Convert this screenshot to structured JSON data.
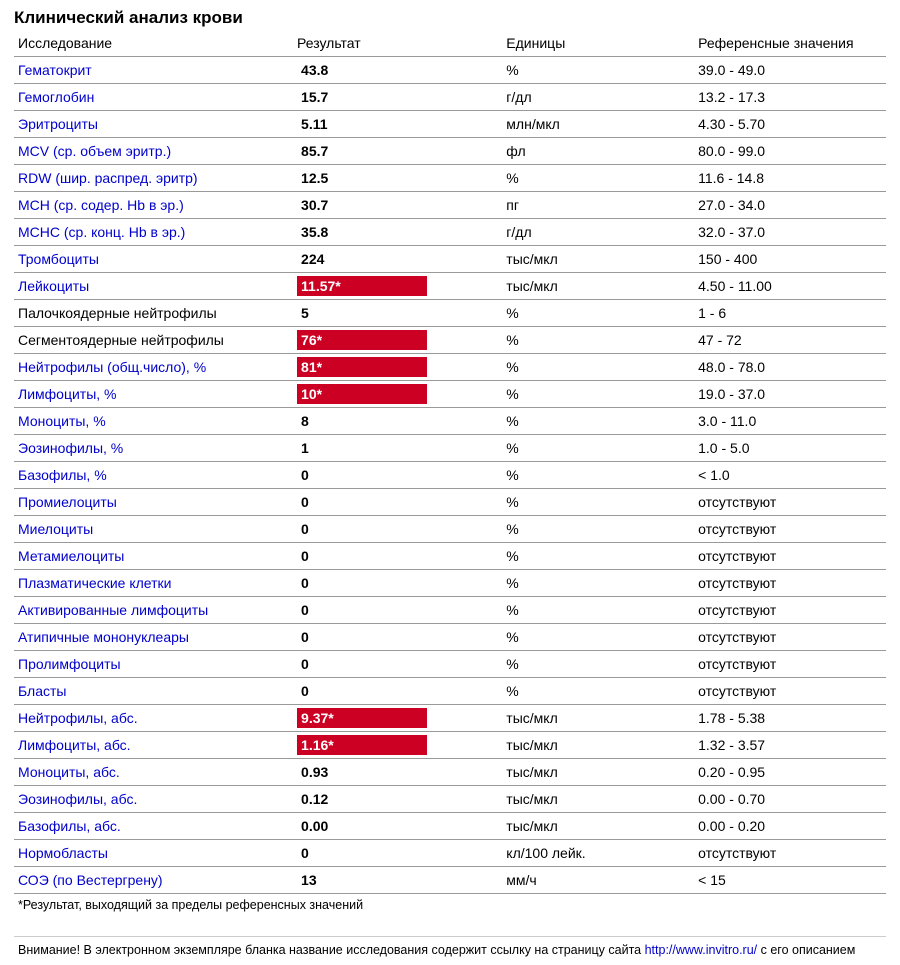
{
  "title": "Клинический анализ крови",
  "columns": {
    "name": "Исследование",
    "result": "Результат",
    "units": "Единицы",
    "reference": "Референсные значения"
  },
  "colors": {
    "link": "#0000cc",
    "plain": "#000000",
    "flag_bg": "#cc0022",
    "flag_text": "#ffffff",
    "border": "#999999"
  },
  "rows": [
    {
      "name": "Гематокрит",
      "link": true,
      "result": "43.8",
      "flag": false,
      "units": "%",
      "ref": "39.0 - 49.0"
    },
    {
      "name": "Гемоглобин",
      "link": true,
      "result": "15.7",
      "flag": false,
      "units": "г/дл",
      "ref": "13.2 - 17.3"
    },
    {
      "name": "Эритроциты",
      "link": true,
      "result": "5.11",
      "flag": false,
      "units": "млн/мкл",
      "ref": "4.30 - 5.70"
    },
    {
      "name": "MCV (ср. объем эритр.)",
      "link": true,
      "result": "85.7",
      "flag": false,
      "units": "фл",
      "ref": "80.0 - 99.0"
    },
    {
      "name": "RDW (шир. распред. эритр)",
      "link": true,
      "result": "12.5",
      "flag": false,
      "units": "%",
      "ref": "11.6 - 14.8"
    },
    {
      "name": "MCH (ср. содер. Hb в эр.)",
      "link": true,
      "result": "30.7",
      "flag": false,
      "units": "пг",
      "ref": "27.0 - 34.0"
    },
    {
      "name": "MCHC (ср. конц. Hb в эр.)",
      "link": true,
      "result": "35.8",
      "flag": false,
      "units": "г/дл",
      "ref": "32.0 - 37.0"
    },
    {
      "name": "Тромбоциты",
      "link": true,
      "result": "224",
      "flag": false,
      "units": "тыс/мкл",
      "ref": "150 - 400"
    },
    {
      "name": "Лейкоциты",
      "link": true,
      "result": "11.57*",
      "flag": true,
      "units": "тыс/мкл",
      "ref": "4.50 - 11.00"
    },
    {
      "name": "Палочкоядерные нейтрофилы",
      "link": false,
      "result": "5",
      "flag": false,
      "units": "%",
      "ref": "1 - 6"
    },
    {
      "name": "Сегментоядерные нейтрофилы",
      "link": false,
      "result": "76*",
      "flag": true,
      "units": "%",
      "ref": "47 - 72"
    },
    {
      "name": "Нейтрофилы (общ.число), %",
      "link": true,
      "result": "81*",
      "flag": true,
      "units": "%",
      "ref": "48.0 - 78.0"
    },
    {
      "name": "Лимфоциты, %",
      "link": true,
      "result": "10*",
      "flag": true,
      "units": "%",
      "ref": "19.0 - 37.0"
    },
    {
      "name": "Моноциты, %",
      "link": true,
      "result": "8",
      "flag": false,
      "units": "%",
      "ref": "3.0 - 11.0"
    },
    {
      "name": "Эозинофилы, %",
      "link": true,
      "result": "1",
      "flag": false,
      "units": "%",
      "ref": "1.0 - 5.0"
    },
    {
      "name": "Базофилы, %",
      "link": true,
      "result": "0",
      "flag": false,
      "units": "%",
      "ref": "< 1.0"
    },
    {
      "name": "Промиелоциты",
      "link": true,
      "result": "0",
      "flag": false,
      "units": "%",
      "ref": "отсутствуют"
    },
    {
      "name": "Миелоциты",
      "link": true,
      "result": "0",
      "flag": false,
      "units": "%",
      "ref": "отсутствуют"
    },
    {
      "name": "Метамиелоциты",
      "link": true,
      "result": "0",
      "flag": false,
      "units": "%",
      "ref": "отсутствуют"
    },
    {
      "name": "Плазматические клетки",
      "link": true,
      "result": "0",
      "flag": false,
      "units": "%",
      "ref": "отсутствуют"
    },
    {
      "name": "Активированные лимфоциты",
      "link": true,
      "result": "0",
      "flag": false,
      "units": "%",
      "ref": "отсутствуют"
    },
    {
      "name": "Атипичные мононуклеары",
      "link": true,
      "result": "0",
      "flag": false,
      "units": "%",
      "ref": "отсутствуют"
    },
    {
      "name": "Пролимфоциты",
      "link": true,
      "result": "0",
      "flag": false,
      "units": "%",
      "ref": "отсутствуют"
    },
    {
      "name": "Бласты",
      "link": true,
      "result": "0",
      "flag": false,
      "units": "%",
      "ref": "отсутствуют"
    },
    {
      "name": "Нейтрофилы, абс.",
      "link": true,
      "result": "9.37*",
      "flag": true,
      "units": "тыс/мкл",
      "ref": "1.78 - 5.38"
    },
    {
      "name": "Лимфоциты, абс.",
      "link": true,
      "result": "1.16*",
      "flag": true,
      "units": "тыс/мкл",
      "ref": "1.32 - 3.57"
    },
    {
      "name": "Моноциты, абс.",
      "link": true,
      "result": "0.93",
      "flag": false,
      "units": "тыс/мкл",
      "ref": "0.20 - 0.95"
    },
    {
      "name": "Эозинофилы, абс.",
      "link": true,
      "result": "0.12",
      "flag": false,
      "units": "тыс/мкл",
      "ref": "0.00 - 0.70"
    },
    {
      "name": "Базофилы, абс.",
      "link": true,
      "result": "0.00",
      "flag": false,
      "units": "тыс/мкл",
      "ref": "0.00 - 0.20"
    },
    {
      "name": "Нормобласты",
      "link": true,
      "result": "0",
      "flag": false,
      "units": "кл/100 лейк.",
      "ref": "отсутствуют"
    },
    {
      "name": "СОЭ (по Вестергрену)",
      "link": true,
      "result": "13",
      "flag": false,
      "units": "мм/ч",
      "ref": "< 15"
    }
  ],
  "footnote": "*Результат, выходящий за пределы референсных значений",
  "notice_prefix": "Внимание! В электронном экземпляре бланка название исследования содержит ссылку на страницу сайта ",
  "notice_url": "http://www.invitro.ru/",
  "notice_suffix": " с его описанием"
}
